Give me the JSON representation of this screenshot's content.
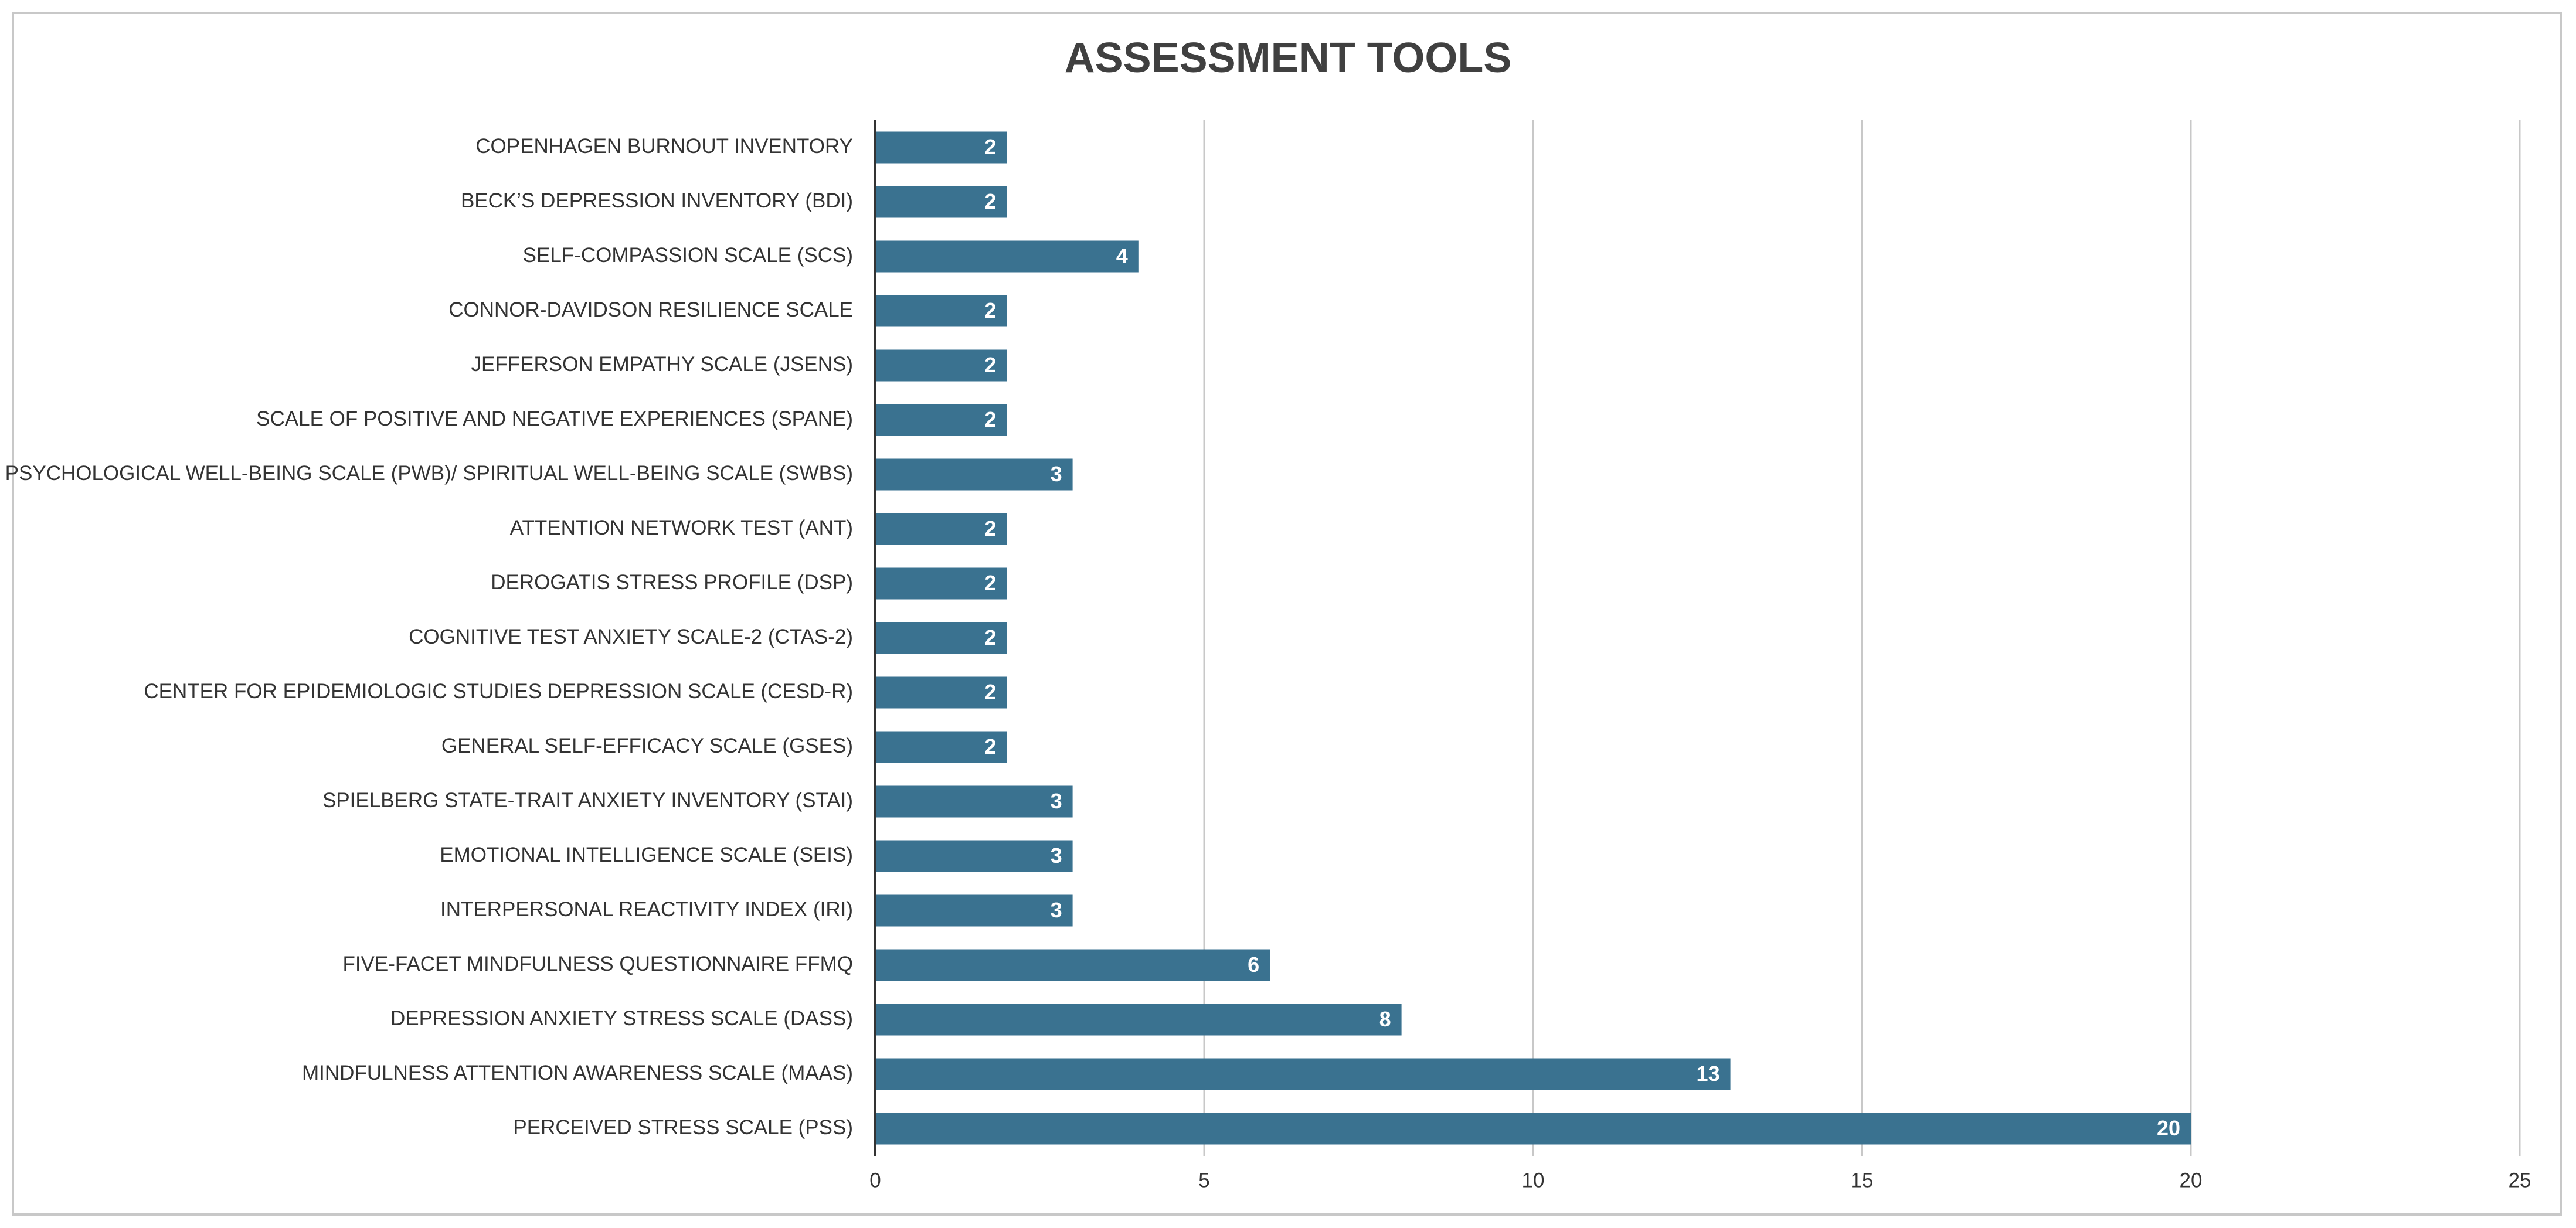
{
  "chart_data": {
    "type": "bar",
    "orientation": "horizontal",
    "title": "ASSESSMENT TOOLS",
    "categories": [
      "COPENHAGEN BURNOUT INVENTORY",
      "BECK’S DEPRESSION INVENTORY (BDI)",
      "SELF-COMPASSION SCALE (SCS)",
      "CONNOR-DAVIDSON RESILIENCE SCALE",
      "JEFFERSON EMPATHY SCALE (JSENS)",
      "SCALE OF POSITIVE AND NEGATIVE EXPERIENCES (SPANE)",
      "PSYCHOLOGICAL WELL-BEING SCALE (PWB)/ SPIRITUAL WELL-BEING SCALE (SWBS)",
      "ATTENTION NETWORK TEST (ANT)",
      "DEROGATIS STRESS PROFILE (DSP)",
      "COGNITIVE TEST ANXIETY SCALE-2 (CTAS-2)",
      "CENTER FOR EPIDEMIOLOGIC STUDIES DEPRESSION SCALE (CESD-R)",
      "GENERAL SELF-EFFICACY SCALE (GSES)",
      "SPIELBERG STATE-TRAIT ANXIETY INVENTORY (STAI)",
      "EMOTIONAL INTELLIGENCE SCALE (SEIS)",
      "INTERPERSONAL REACTIVITY INDEX (IRI)",
      "FIVE-FACET MINDFULNESS QUESTIONNAIRE FFMQ",
      "DEPRESSION ANXIETY STRESS SCALE (DASS)",
      "MINDFULNESS ATTENTION AWARENESS SCALE (MAAS)",
      "PERCEIVED STRESS SCALE (PSS)"
    ],
    "values": [
      2,
      2,
      4,
      2,
      2,
      2,
      3,
      2,
      2,
      2,
      2,
      2,
      3,
      3,
      3,
      6,
      8,
      13,
      20
    ],
    "color": "#3a7290",
    "xlim": [
      0,
      25
    ],
    "xticks": [
      0,
      5,
      10,
      15,
      20,
      25
    ],
    "grid": true
  }
}
